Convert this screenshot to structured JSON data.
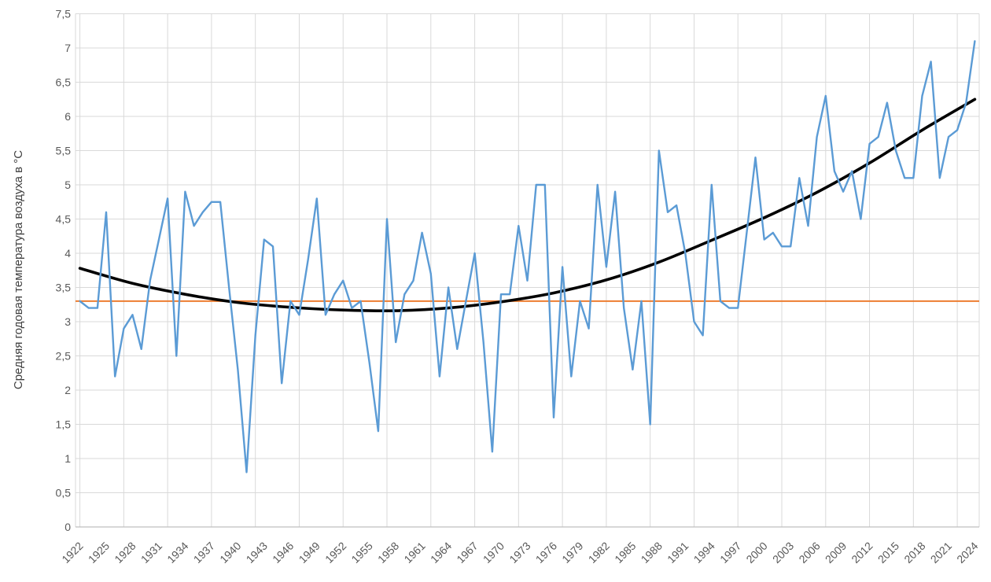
{
  "chart_data": {
    "type": "line",
    "title": "",
    "xlabel": "",
    "ylabel": "Средняя годовая температура воздуха в °C",
    "ylim": [
      0,
      7.5
    ],
    "ytick_step": 0.5,
    "ytick_labels": [
      "0",
      "0,5",
      "1",
      "1,5",
      "2",
      "2,5",
      "3",
      "3,5",
      "4",
      "4,5",
      "5",
      "5,5",
      "6",
      "6,5",
      "7",
      "7,5"
    ],
    "x_start": 1922,
    "x_end": 2024,
    "xtick_label_interval": 3,
    "xtick_labels": [
      "1922",
      "1925",
      "1928",
      "1931",
      "1934",
      "1937",
      "1940",
      "1943",
      "1946",
      "1949",
      "1952",
      "1955",
      "1958",
      "1961",
      "1964",
      "1967",
      "1970",
      "1973",
      "1976",
      "1979",
      "1982",
      "1985",
      "1988",
      "1991",
      "1994",
      "1997",
      "2000",
      "2003",
      "2006",
      "2009",
      "2012",
      "2015",
      "2018",
      "2021",
      "2024"
    ],
    "grid": true,
    "vertical_gridline_interval_years": 5,
    "legend_position": "none",
    "series": [
      {
        "name": "annual-temperature",
        "kind": "line",
        "color": "#5B9BD5",
        "x_first": 1922,
        "values": [
          3.3,
          3.2,
          3.2,
          4.6,
          2.2,
          2.9,
          3.1,
          2.6,
          3.6,
          4.2,
          4.8,
          2.5,
          4.9,
          4.4,
          4.6,
          4.75,
          4.75,
          3.5,
          2.3,
          0.8,
          2.8,
          4.2,
          4.1,
          2.1,
          3.3,
          3.1,
          3.9,
          4.8,
          3.1,
          3.4,
          3.6,
          3.2,
          3.3,
          2.4,
          1.4,
          4.5,
          2.7,
          3.4,
          3.6,
          4.3,
          3.7,
          2.2,
          3.5,
          2.6,
          3.3,
          4.0,
          2.7,
          1.1,
          3.4,
          3.4,
          4.4,
          3.6,
          5.0,
          5.0,
          1.6,
          3.8,
          2.2,
          3.3,
          2.9,
          5.0,
          3.8,
          4.9,
          3.2,
          2.3,
          3.3,
          1.5,
          5.5,
          4.6,
          4.7,
          4.0,
          3.0,
          2.8,
          5.0,
          3.3,
          3.2,
          3.2,
          4.3,
          5.4,
          4.2,
          4.3,
          4.1,
          4.1,
          5.1,
          4.4,
          5.7,
          6.3,
          5.2,
          4.9,
          5.2,
          4.5,
          5.6,
          5.7,
          6.2,
          5.5,
          5.1,
          5.1,
          6.3,
          6.8,
          5.1,
          5.7,
          5.8,
          6.2,
          7.1
        ]
      },
      {
        "name": "norm-line",
        "kind": "horizontal-line",
        "color": "#ED7D31",
        "value": 3.3
      },
      {
        "name": "trend-polynomial",
        "kind": "smooth-curve",
        "color": "#000000",
        "points": [
          [
            1922,
            3.78
          ],
          [
            1928,
            3.56
          ],
          [
            1934,
            3.4
          ],
          [
            1940,
            3.28
          ],
          [
            1946,
            3.21
          ],
          [
            1952,
            3.17
          ],
          [
            1958,
            3.16
          ],
          [
            1964,
            3.2
          ],
          [
            1970,
            3.29
          ],
          [
            1976,
            3.42
          ],
          [
            1982,
            3.61
          ],
          [
            1988,
            3.87
          ],
          [
            1994,
            4.19
          ],
          [
            2000,
            4.52
          ],
          [
            2006,
            4.89
          ],
          [
            2012,
            5.32
          ],
          [
            2018,
            5.8
          ],
          [
            2024,
            6.25
          ]
        ]
      }
    ]
  },
  "colors": {
    "background": "#ffffff",
    "gridline": "#D9D9D9",
    "axis_line": "#BFBFBF",
    "tick_label": "#595959",
    "axis_title": "#404040",
    "annual_series": "#5B9BD5",
    "norm_line": "#ED7D31",
    "trend_line": "#000000"
  }
}
